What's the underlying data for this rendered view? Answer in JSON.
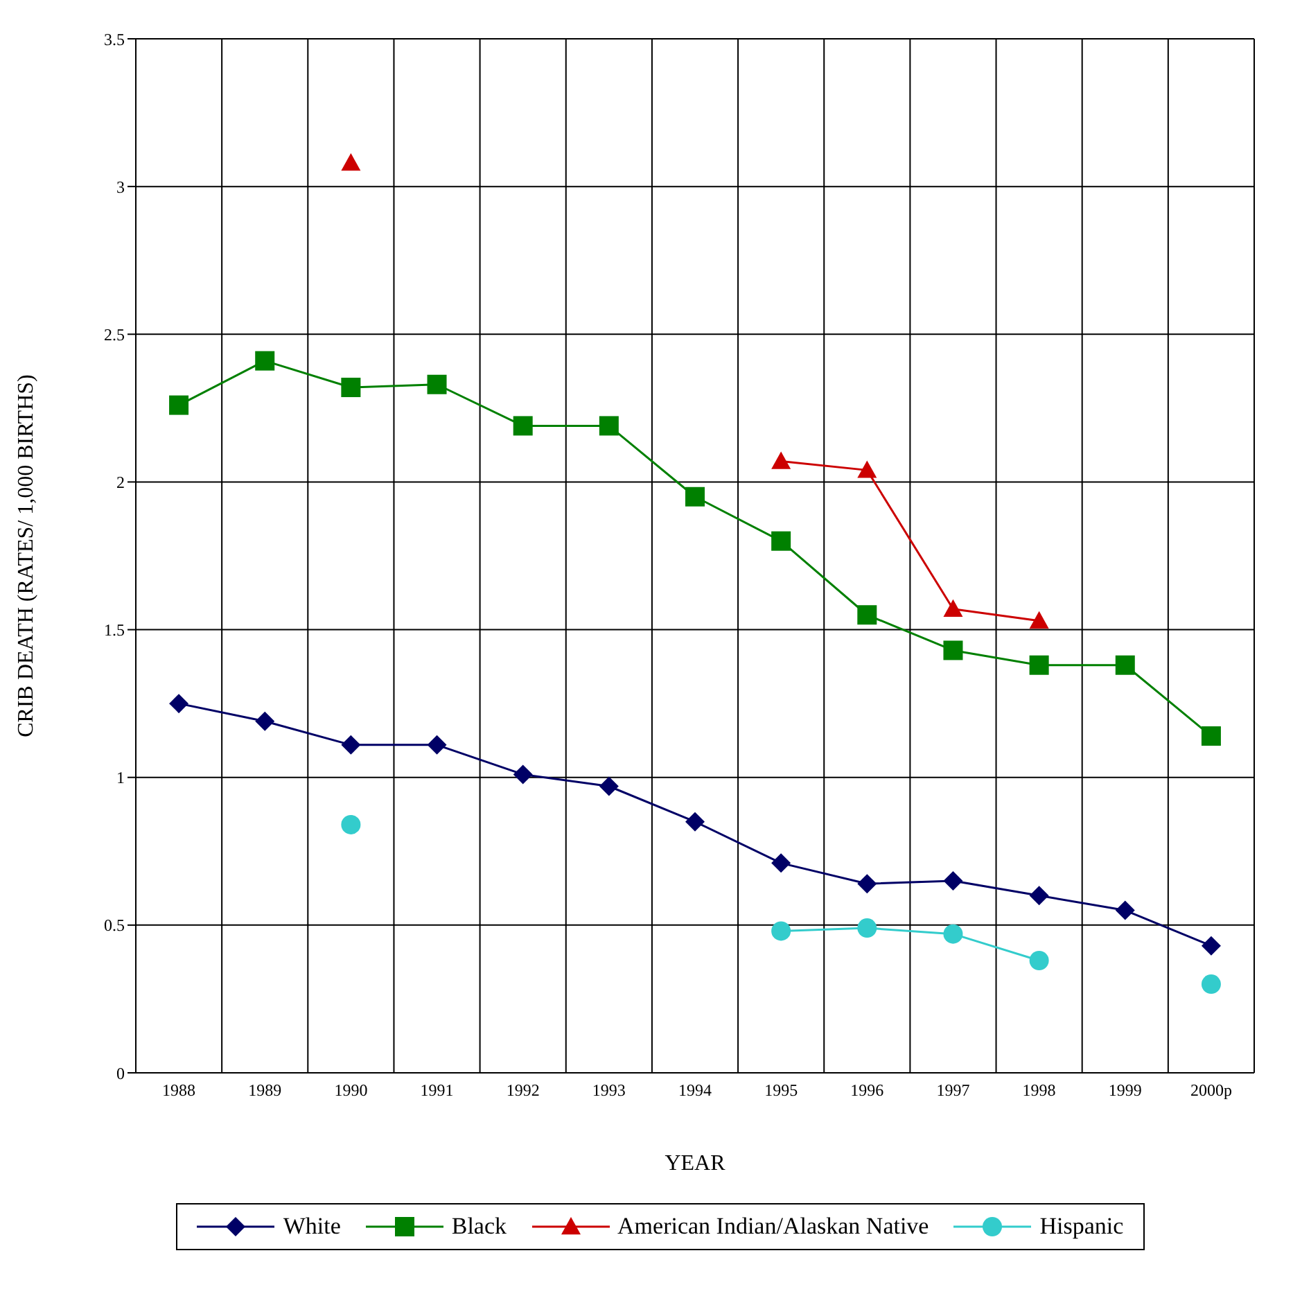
{
  "chart_data": {
    "type": "line",
    "xlabel": "YEAR",
    "ylabel": "CRIB DEATH (RATES/ 1,000 BIRTHS)",
    "categories": [
      "1988",
      "1989",
      "1990",
      "1991",
      "1992",
      "1993",
      "1994",
      "1995",
      "1996",
      "1997",
      "1998",
      "1999",
      "2000p"
    ],
    "series": [
      {
        "name": "White",
        "color": "#000066",
        "marker": "diamond",
        "values": [
          1.25,
          1.19,
          1.11,
          1.11,
          1.01,
          0.97,
          0.85,
          0.71,
          0.64,
          0.65,
          0.6,
          0.55,
          0.43
        ]
      },
      {
        "name": "Black",
        "color": "#008000",
        "marker": "square",
        "values": [
          2.26,
          2.41,
          2.32,
          2.33,
          2.19,
          2.19,
          1.95,
          1.8,
          1.55,
          1.43,
          1.38,
          1.38,
          1.14
        ]
      },
      {
        "name": "American Indian/Alaskan Native",
        "color": "#cc0000",
        "marker": "triangle",
        "values": [
          null,
          null,
          3.08,
          null,
          null,
          null,
          null,
          2.07,
          2.04,
          1.57,
          1.53,
          null,
          null
        ]
      },
      {
        "name": "Hispanic",
        "color": "#33cccc",
        "marker": "circle",
        "values": [
          null,
          null,
          0.84,
          null,
          null,
          null,
          null,
          0.48,
          0.49,
          0.47,
          0.38,
          null,
          0.3
        ]
      }
    ],
    "ylim": [
      0,
      3.5
    ],
    "yticks": [
      0,
      0.5,
      1,
      1.5,
      2,
      2.5,
      3,
      3.5
    ],
    "grid": true,
    "legend": "bottom",
    "line_style": "solid"
  }
}
